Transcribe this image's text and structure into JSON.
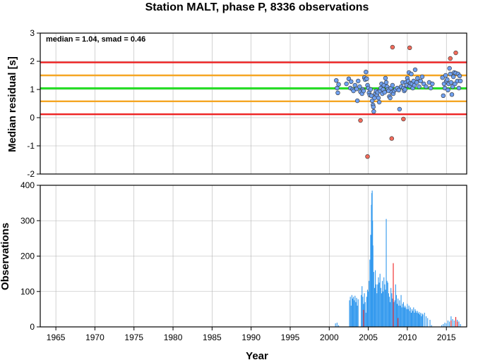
{
  "chart_data": [
    {
      "type": "scatter",
      "title": "Station MALT, phase P, 8336 observations",
      "ylabel": "Median residual [s]",
      "annotation": "median = 1.04, smad = 0.46",
      "xlim": [
        1963,
        2017.6
      ],
      "ylim": [
        -2,
        3
      ],
      "yticks": [
        -2,
        -1,
        0,
        1,
        2,
        3
      ],
      "grid": true,
      "reference_lines": [
        {
          "y": 1.04,
          "color": "#22dd22",
          "role": "median"
        },
        {
          "y": 1.5,
          "color": "#f5a623",
          "role": "median + smad"
        },
        {
          "y": 0.58,
          "color": "#f5a623",
          "role": "median - smad"
        },
        {
          "y": 1.96,
          "color": "#ee2222",
          "role": "median + 2 smad"
        },
        {
          "y": 0.12,
          "color": "#ee2222",
          "role": "median - 2 smad"
        }
      ],
      "series": [
        {
          "color": "#6fa0f0",
          "points": [
            [
              2000.9,
              1.32
            ],
            [
              2001.0,
              1.05
            ],
            [
              2001.1,
              0.88
            ],
            [
              2001.2,
              1.18
            ],
            [
              2002.2,
              1.2
            ],
            [
              2002.5,
              1.38
            ],
            [
              2002.7,
              1.05
            ],
            [
              2002.8,
              1.28
            ],
            [
              2003.0,
              1.0
            ],
            [
              2003.1,
              0.95
            ],
            [
              2003.3,
              1.15
            ],
            [
              2003.5,
              1.02
            ],
            [
              2003.6,
              0.6
            ],
            [
              2003.7,
              1.3
            ],
            [
              2003.9,
              1.1
            ],
            [
              2004.0,
              0.92
            ],
            [
              2004.2,
              0.85
            ],
            [
              2004.3,
              1.0
            ],
            [
              2004.4,
              0.95
            ],
            [
              2004.5,
              1.42
            ],
            [
              2004.6,
              1.35
            ],
            [
              2004.7,
              1.62
            ],
            [
              2004.8,
              1.38
            ],
            [
              2004.9,
              1.15
            ],
            [
              2005.0,
              1.05
            ],
            [
              2005.1,
              0.88
            ],
            [
              2005.2,
              0.8
            ],
            [
              2005.3,
              1.0
            ],
            [
              2005.4,
              0.78
            ],
            [
              2005.5,
              0.6
            ],
            [
              2005.6,
              0.45
            ],
            [
              2005.65,
              0.38
            ],
            [
              2005.7,
              0.22
            ],
            [
              2005.8,
              0.7
            ],
            [
              2005.9,
              0.85
            ],
            [
              2006.0,
              0.95
            ],
            [
              2006.1,
              0.8
            ],
            [
              2006.2,
              0.9
            ],
            [
              2006.3,
              0.7
            ],
            [
              2006.4,
              0.55
            ],
            [
              2006.5,
              0.95
            ],
            [
              2006.6,
              1.05
            ],
            [
              2006.7,
              1.2
            ],
            [
              2006.8,
              0.85
            ],
            [
              2006.9,
              1.0
            ],
            [
              2007.0,
              1.15
            ],
            [
              2007.1,
              0.9
            ],
            [
              2007.2,
              1.4
            ],
            [
              2007.3,
              1.25
            ],
            [
              2007.4,
              1.1
            ],
            [
              2007.5,
              1.0
            ],
            [
              2007.6,
              0.95
            ],
            [
              2007.7,
              0.75
            ],
            [
              2007.8,
              0.7
            ],
            [
              2007.9,
              1.05
            ],
            [
              2008.0,
              0.9
            ],
            [
              2008.1,
              1.15
            ],
            [
              2008.2,
              0.85
            ],
            [
              2008.3,
              0.95
            ],
            [
              2008.5,
              1.0
            ],
            [
              2008.7,
              1.05
            ],
            [
              2008.9,
              0.98
            ],
            [
              2009.0,
              0.3
            ],
            [
              2009.2,
              1.1
            ],
            [
              2009.4,
              1.25
            ],
            [
              2009.5,
              1.05
            ],
            [
              2009.6,
              0.95
            ],
            [
              2009.7,
              1.0
            ],
            [
              2009.8,
              1.25
            ],
            [
              2009.9,
              1.15
            ],
            [
              2010.0,
              1.4
            ],
            [
              2010.1,
              1.3
            ],
            [
              2010.2,
              1.6
            ],
            [
              2010.3,
              1.12
            ],
            [
              2010.4,
              1.22
            ],
            [
              2010.5,
              1.55
            ],
            [
              2010.6,
              1.2
            ],
            [
              2010.7,
              1.05
            ],
            [
              2010.8,
              1.3
            ],
            [
              2010.9,
              1.15
            ],
            [
              2011.0,
              1.7
            ],
            [
              2011.2,
              1.25
            ],
            [
              2011.3,
              1.4
            ],
            [
              2011.5,
              1.1
            ],
            [
              2011.7,
              1.3
            ],
            [
              2011.9,
              1.45
            ],
            [
              2012.1,
              1.2
            ],
            [
              2012.4,
              1.1
            ],
            [
              2012.8,
              1.25
            ],
            [
              2013.0,
              1.05
            ],
            [
              2013.2,
              1.2
            ],
            [
              2014.5,
              1.42
            ],
            [
              2014.6,
              0.78
            ],
            [
              2014.7,
              1.2
            ],
            [
              2014.8,
              1.05
            ],
            [
              2014.9,
              1.5
            ],
            [
              2015.0,
              1.3
            ],
            [
              2015.1,
              1.35
            ],
            [
              2015.2,
              0.98
            ],
            [
              2015.3,
              1.2
            ],
            [
              2015.4,
              1.75
            ],
            [
              2015.5,
              1.55
            ],
            [
              2015.6,
              1.25
            ],
            [
              2015.7,
              0.82
            ],
            [
              2015.8,
              1.1
            ],
            [
              2015.9,
              1.45
            ],
            [
              2016.0,
              1.6
            ],
            [
              2016.1,
              1.2
            ],
            [
              2016.2,
              1.58
            ],
            [
              2016.4,
              1.3
            ],
            [
              2016.5,
              1.55
            ],
            [
              2016.6,
              1.05
            ],
            [
              2016.7,
              1.48
            ],
            [
              2016.8,
              1.3
            ]
          ]
        },
        {
          "color": "#f26b5b",
          "points": [
            [
              2004.0,
              -0.1
            ],
            [
              2004.9,
              -1.38
            ],
            [
              2008.1,
              2.5
            ],
            [
              2008.0,
              -0.74
            ],
            [
              2009.5,
              -0.05
            ],
            [
              2010.3,
              2.48
            ],
            [
              2015.5,
              2.1
            ],
            [
              2016.2,
              2.3
            ]
          ]
        }
      ]
    },
    {
      "type": "bar",
      "xlabel": "Year",
      "ylabel": "Observations",
      "xlim": [
        1963,
        2017.6
      ],
      "ylim": [
        0,
        400
      ],
      "yticks": [
        0,
        100,
        200,
        300,
        400
      ],
      "xticks": [
        1965,
        1970,
        1975,
        1980,
        1985,
        1990,
        1995,
        2000,
        2005,
        2010,
        2015
      ],
      "grid": true,
      "series": [
        {
          "color": "#3399ee",
          "bars": [
            [
              2000.8,
              10
            ],
            [
              2001.0,
              12
            ],
            [
              2001.2,
              5
            ],
            [
              2002.6,
              75
            ],
            [
              2002.7,
              85
            ],
            [
              2002.8,
              60
            ],
            [
              2002.9,
              90
            ],
            [
              2003.0,
              80
            ],
            [
              2003.1,
              85
            ],
            [
              2003.2,
              75
            ],
            [
              2003.3,
              88
            ],
            [
              2003.4,
              70
            ],
            [
              2003.5,
              82
            ],
            [
              2003.6,
              60
            ],
            [
              2003.7,
              78
            ],
            [
              2004.1,
              90
            ],
            [
              2004.2,
              115
            ],
            [
              2004.3,
              85
            ],
            [
              2004.4,
              65
            ],
            [
              2004.5,
              95
            ],
            [
              2004.6,
              70
            ],
            [
              2004.7,
              40
            ],
            [
              2004.8,
              85
            ],
            [
              2004.9,
              105
            ],
            [
              2005.0,
              100
            ],
            [
              2005.1,
              130
            ],
            [
              2005.2,
              190
            ],
            [
              2005.3,
              260
            ],
            [
              2005.4,
              345
            ],
            [
              2005.45,
              378
            ],
            [
              2005.5,
              385
            ],
            [
              2005.55,
              300
            ],
            [
              2005.6,
              230
            ],
            [
              2005.7,
              155
            ],
            [
              2005.8,
              110
            ],
            [
              2005.9,
              160
            ],
            [
              2006.0,
              120
            ],
            [
              2006.1,
              95
            ],
            [
              2006.2,
              120
            ],
            [
              2006.3,
              140
            ],
            [
              2006.4,
              125
            ],
            [
              2006.5,
              150
            ],
            [
              2006.6,
              110
            ],
            [
              2006.7,
              95
            ],
            [
              2006.8,
              130
            ],
            [
              2006.9,
              100
            ],
            [
              2007.0,
              140
            ],
            [
              2007.1,
              120
            ],
            [
              2007.2,
              105
            ],
            [
              2007.3,
              305
            ],
            [
              2007.4,
              130
            ],
            [
              2007.5,
              125
            ],
            [
              2007.6,
              95
            ],
            [
              2007.7,
              85
            ],
            [
              2007.8,
              70
            ],
            [
              2007.9,
              110
            ],
            [
              2008.0,
              95
            ],
            [
              2008.1,
              80
            ],
            [
              2008.2,
              105
            ],
            [
              2008.3,
              70
            ],
            [
              2008.4,
              75
            ],
            [
              2008.5,
              120
            ],
            [
              2008.6,
              90
            ],
            [
              2008.7,
              65
            ],
            [
              2008.8,
              80
            ],
            [
              2008.9,
              60
            ],
            [
              2009.0,
              75
            ],
            [
              2009.1,
              60
            ],
            [
              2009.2,
              90
            ],
            [
              2009.3,
              55
            ],
            [
              2009.4,
              65
            ],
            [
              2009.5,
              70
            ],
            [
              2009.6,
              55
            ],
            [
              2009.7,
              60
            ],
            [
              2009.8,
              55
            ],
            [
              2009.9,
              50
            ],
            [
              2010.0,
              65
            ],
            [
              2010.1,
              50
            ],
            [
              2010.2,
              60
            ],
            [
              2010.3,
              45
            ],
            [
              2010.4,
              55
            ],
            [
              2010.5,
              40
            ],
            [
              2010.6,
              50
            ],
            [
              2010.7,
              45
            ],
            [
              2010.8,
              55
            ],
            [
              2010.9,
              40
            ],
            [
              2011.0,
              50
            ],
            [
              2011.1,
              45
            ],
            [
              2011.2,
              40
            ],
            [
              2011.3,
              45
            ],
            [
              2011.4,
              38
            ],
            [
              2011.5,
              42
            ],
            [
              2011.6,
              35
            ],
            [
              2011.7,
              40
            ],
            [
              2011.8,
              30
            ],
            [
              2011.9,
              38
            ],
            [
              2012.0,
              35
            ],
            [
              2012.2,
              40
            ],
            [
              2012.4,
              30
            ],
            [
              2012.6,
              25
            ],
            [
              2012.9,
              20
            ],
            [
              2013.1,
              5
            ],
            [
              2014.4,
              5
            ],
            [
              2014.6,
              8
            ],
            [
              2014.8,
              12
            ],
            [
              2015.0,
              10
            ],
            [
              2015.2,
              18
            ],
            [
              2015.4,
              15
            ],
            [
              2015.6,
              30
            ],
            [
              2015.8,
              22
            ],
            [
              2016.0,
              18
            ],
            [
              2016.2,
              25
            ],
            [
              2016.4,
              20
            ],
            [
              2016.6,
              15
            ],
            [
              2016.8,
              8
            ]
          ]
        },
        {
          "color": "#ee2222",
          "bars": [
            [
              2004.4,
              48
            ],
            [
              2008.2,
              180
            ],
            [
              2008.8,
              25
            ],
            [
              2015.6,
              18
            ],
            [
              2016.2,
              28
            ],
            [
              2016.4,
              15
            ]
          ]
        }
      ]
    }
  ]
}
